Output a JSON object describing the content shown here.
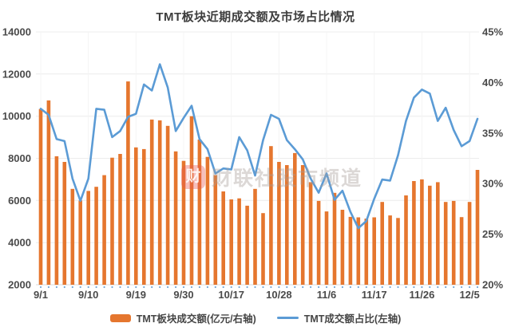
{
  "title": "TMT板块近期成交额及市场占比情况",
  "watermark": {
    "logo_char": "财",
    "text": "财联社股市频道"
  },
  "legend": [
    {
      "label": "TMT板块成交额(亿元/右轴)",
      "type": "bar",
      "color": "#e5762e"
    },
    {
      "label": "TMT成交额占比(左轴)",
      "type": "line",
      "color": "#5b9bd5"
    }
  ],
  "chart_data": {
    "type": "bar+line combo",
    "title": "TMT板块近期成交额及市场占比情况",
    "x_labels_shown": [
      "9/1",
      "9/10",
      "9/19",
      "9/30",
      "10/17",
      "10/28",
      "11/6",
      "11/17",
      "11/26",
      "12/5"
    ],
    "x_label_indices": [
      0,
      6,
      12,
      18,
      24,
      30,
      36,
      42,
      48,
      54
    ],
    "left_axis": {
      "ticks": [
        14000,
        12000,
        10000,
        8000,
        6000,
        4000,
        2000
      ],
      "min": 2000,
      "max": 14000
    },
    "right_axis": {
      "ticks": [
        "45%",
        "40%",
        "35%",
        "30%",
        "25%",
        "20%"
      ],
      "min": 20,
      "max": 45
    },
    "grid": "horizontal light gray at every 2000; faint vertical at labeled dates",
    "legend_position": "bottom center",
    "series": [
      {
        "name": "TMT板块成交额(亿元/右轴)",
        "type": "bar",
        "color": "#e5762e",
        "unit": "亿元",
        "values": [
          10340,
          10750,
          8100,
          7830,
          6550,
          6000,
          6450,
          6650,
          7200,
          8030,
          8210,
          11650,
          8520,
          8440,
          9840,
          9800,
          9540,
          8330,
          7880,
          10000,
          8890,
          8070,
          7200,
          6430,
          6050,
          6100,
          5750,
          6550,
          5400,
          8580,
          7830,
          7680,
          8250,
          7680,
          6870,
          5980,
          5480,
          6360,
          5560,
          5220,
          5200,
          5140,
          5200,
          5930,
          5290,
          5170,
          6240,
          6920,
          7000,
          6700,
          6870,
          5930,
          5980,
          5210,
          5930,
          7450
        ]
      },
      {
        "name": "TMT成交额占比(左轴)",
        "type": "line",
        "color": "#5b9bd5",
        "unit": "%",
        "values": [
          37.4,
          36.8,
          34.4,
          34.2,
          30.5,
          28.3,
          30.5,
          37.4,
          37.3,
          34.6,
          35.2,
          36.6,
          36.9,
          39.8,
          39.2,
          41.8,
          39.5,
          35.2,
          36.5,
          37.7,
          34.4,
          33.4,
          31.0,
          31.5,
          31.4,
          34.6,
          33.3,
          30.8,
          34.3,
          36.8,
          36.4,
          34.3,
          33.4,
          32.4,
          30.5,
          29.1,
          31.0,
          28.4,
          29.3,
          27.2,
          25.6,
          26.3,
          28.5,
          30.4,
          30.3,
          32.8,
          36.2,
          38.5,
          39.3,
          38.9,
          36.2,
          37.5,
          35.3,
          33.7,
          34.2,
          36.4
        ]
      }
    ]
  }
}
